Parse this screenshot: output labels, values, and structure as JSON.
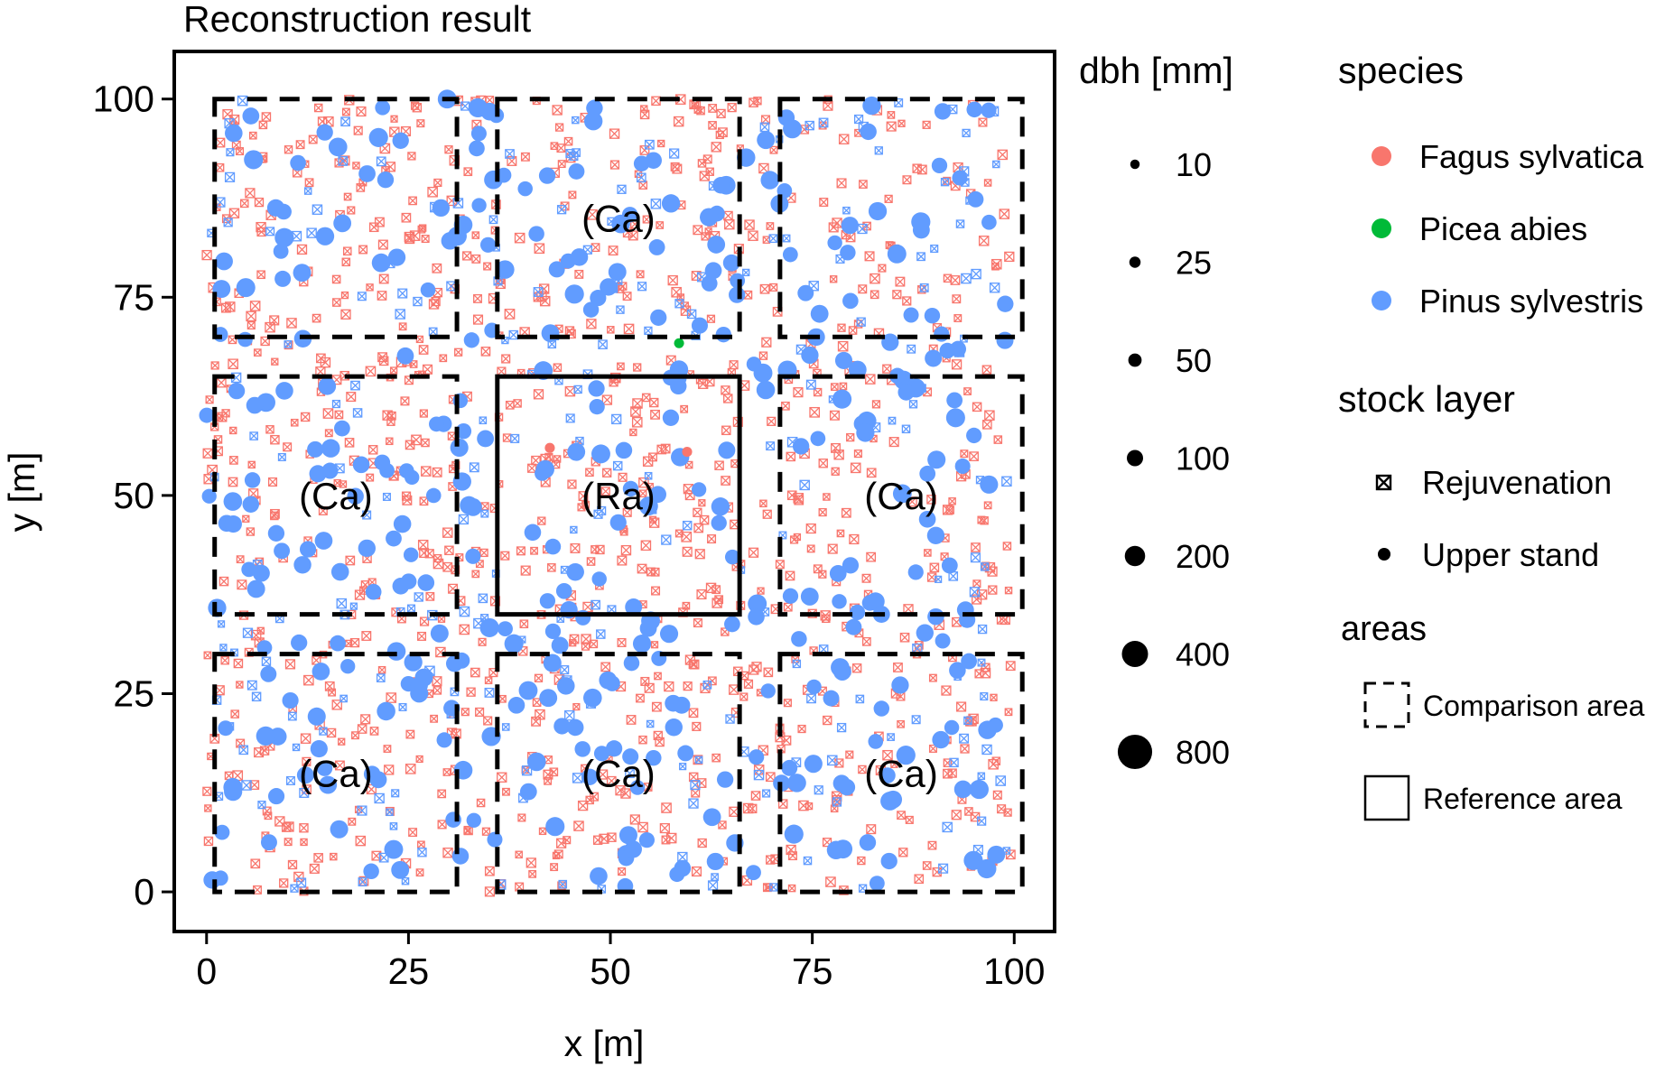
{
  "chart_data": {
    "type": "scatter",
    "title": "Reconstruction result",
    "xlabel": "x [m]",
    "ylabel": "y [m]",
    "xlim": [
      -4,
      105
    ],
    "ylim": [
      -5,
      106
    ],
    "x_ticks": [
      0,
      25,
      50,
      75,
      100
    ],
    "y_ticks": [
      0,
      25,
      50,
      75,
      100
    ],
    "x_tick_labels": [
      "0",
      "25",
      "50",
      "75",
      "100"
    ],
    "y_tick_labels": [
      "0",
      "25",
      "50",
      "75",
      "100"
    ],
    "grid": false,
    "legend_position": "right",
    "colors": {
      "Fagus sylvatica": "#F8766D",
      "Picea abies": "#00BA38",
      "Pinus sylvestris": "#619CFF"
    },
    "legend": {
      "dbh": {
        "title": "dbh [mm]",
        "entries": [
          {
            "label": "10",
            "value": 10
          },
          {
            "label": "25",
            "value": 25
          },
          {
            "label": "50",
            "value": 50
          },
          {
            "label": "100",
            "value": 100
          },
          {
            "label": "200",
            "value": 200
          },
          {
            "label": "400",
            "value": 400
          },
          {
            "label": "800",
            "value": 800
          }
        ]
      },
      "species": {
        "title": "species",
        "entries": [
          {
            "label": "Fagus sylvatica",
            "color": "#F8766D"
          },
          {
            "label": "Picea abies",
            "color": "#00BA38"
          },
          {
            "label": "Pinus sylvestris",
            "color": "#619CFF"
          }
        ]
      },
      "stock_layer": {
        "title": "stock layer",
        "entries": [
          {
            "label": "Rejuvenation",
            "marker": "crossed-square"
          },
          {
            "label": "Upper stand",
            "marker": "filled-circle"
          }
        ]
      },
      "areas": {
        "title": "areas",
        "entries": [
          {
            "label": "Comparison area",
            "style": "dashed"
          },
          {
            "label": "Reference area",
            "style": "solid"
          }
        ]
      }
    },
    "areas": [
      {
        "kind": "comparison",
        "label": "(Ca)",
        "x": [
          1,
          31
        ],
        "y": [
          70,
          100
        ],
        "label_shown": false
      },
      {
        "kind": "comparison",
        "label": "(Ca)",
        "x": [
          36,
          66
        ],
        "y": [
          70,
          100
        ],
        "label_shown": true
      },
      {
        "kind": "comparison",
        "label": "(Ca)",
        "x": [
          71,
          101
        ],
        "y": [
          70,
          100
        ],
        "label_shown": false
      },
      {
        "kind": "comparison",
        "label": "(Ca)",
        "x": [
          1,
          31
        ],
        "y": [
          35,
          65
        ],
        "label_shown": true
      },
      {
        "kind": "reference",
        "label": "(Ra)",
        "x": [
          36,
          66
        ],
        "y": [
          35,
          65
        ],
        "label_shown": true
      },
      {
        "kind": "comparison",
        "label": "(Ca)",
        "x": [
          71,
          101
        ],
        "y": [
          35,
          65
        ],
        "label_shown": true
      },
      {
        "kind": "comparison",
        "label": "(Ca)",
        "x": [
          1,
          31
        ],
        "y": [
          0,
          30
        ],
        "label_shown": true
      },
      {
        "kind": "comparison",
        "label": "(Ca)",
        "x": [
          36,
          66
        ],
        "y": [
          0,
          30
        ],
        "label_shown": true
      },
      {
        "kind": "comparison",
        "label": "(Ca)",
        "x": [
          71,
          101
        ],
        "y": [
          0,
          30
        ],
        "label_shown": true
      }
    ],
    "point_sets": [
      {
        "species": "Pinus sylvestris",
        "layer": "Upper stand",
        "dbh_range_mm": [
          150,
          300
        ],
        "approx_count": 380,
        "extent": {
          "x": [
            0,
            100
          ],
          "y": [
            0,
            100
          ]
        }
      },
      {
        "species": "Fagus sylvatica",
        "layer": "Rejuvenation",
        "dbh_range_mm": [
          10,
          50
        ],
        "approx_count": 980,
        "extent": {
          "x": [
            0,
            100
          ],
          "y": [
            0,
            100
          ]
        }
      },
      {
        "species": "Pinus sylvestris",
        "layer": "Rejuvenation",
        "dbh_range_mm": [
          10,
          50
        ],
        "approx_count": 260,
        "extent": {
          "x": [
            0,
            100
          ],
          "y": [
            0,
            100
          ]
        }
      }
    ],
    "points": [
      {
        "species": "Picea abies",
        "layer": "Upper stand",
        "x": 58.5,
        "y": 69.2,
        "dbh": 50
      },
      {
        "species": "Fagus sylvatica",
        "layer": "Upper stand",
        "x": 42.5,
        "y": 56.0,
        "dbh": 50
      },
      {
        "species": "Fagus sylvatica",
        "layer": "Upper stand",
        "x": 59.5,
        "y": 55.5,
        "dbh": 50
      }
    ]
  }
}
